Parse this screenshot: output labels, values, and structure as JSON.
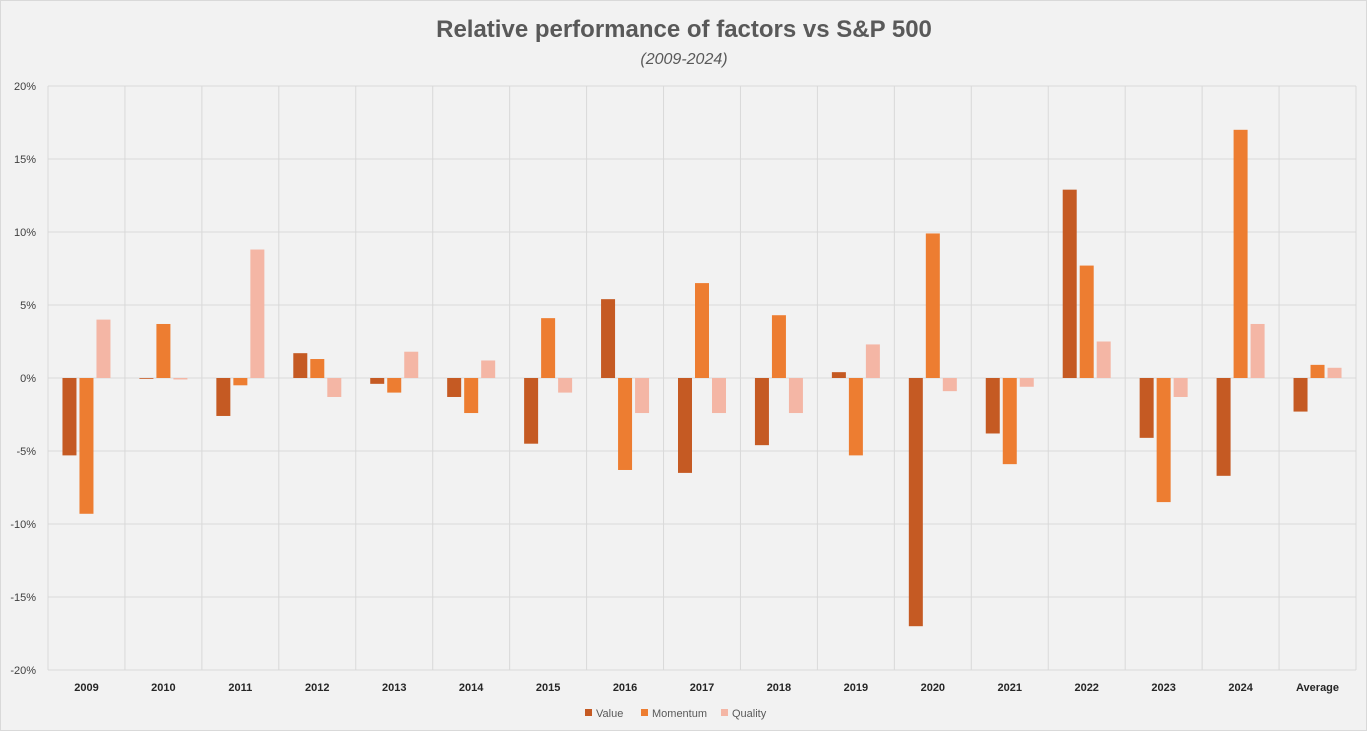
{
  "chart_data": {
    "type": "bar",
    "title": "Relative performance of factors vs S&P 500",
    "subtitle": "(2009-2024)",
    "xlabel": "",
    "ylabel": "",
    "ylim": [
      -20,
      20
    ],
    "yticks": [
      20,
      15,
      10,
      5,
      0,
      -5,
      -10,
      -15,
      -20
    ],
    "ytick_labels": [
      "20%",
      "15%",
      "10%",
      "5%",
      "0%",
      "-5%",
      "-10%",
      "-15%",
      "-20%"
    ],
    "categories": [
      "2009",
      "2010",
      "2011",
      "2012",
      "2013",
      "2014",
      "2015",
      "2016",
      "2017",
      "2018",
      "2019",
      "2020",
      "2021",
      "2022",
      "2023",
      "2024",
      "Average"
    ],
    "series": [
      {
        "name": "Value",
        "color": "#c55a23",
        "values": [
          -5.3,
          0.0,
          -2.6,
          1.7,
          -0.4,
          -1.3,
          -4.5,
          5.4,
          -6.5,
          -4.6,
          0.4,
          -17.0,
          -3.8,
          12.9,
          -4.1,
          -6.7,
          -2.3
        ]
      },
      {
        "name": "Momentum",
        "color": "#ed7d31",
        "values": [
          -9.3,
          3.7,
          -0.5,
          1.3,
          -1.0,
          -2.4,
          4.1,
          -6.3,
          6.5,
          4.3,
          -5.3,
          9.9,
          -5.9,
          7.7,
          -8.5,
          17.0,
          0.9
        ]
      },
      {
        "name": "Quality",
        "color": "#f4b6a5",
        "values": [
          4.0,
          -0.1,
          8.8,
          -1.3,
          1.8,
          1.2,
          -1.0,
          -2.4,
          -2.4,
          -2.4,
          2.3,
          -0.9,
          -0.6,
          2.5,
          -1.3,
          3.7,
          0.7
        ]
      }
    ],
    "grid": true,
    "legend": "bottom"
  }
}
